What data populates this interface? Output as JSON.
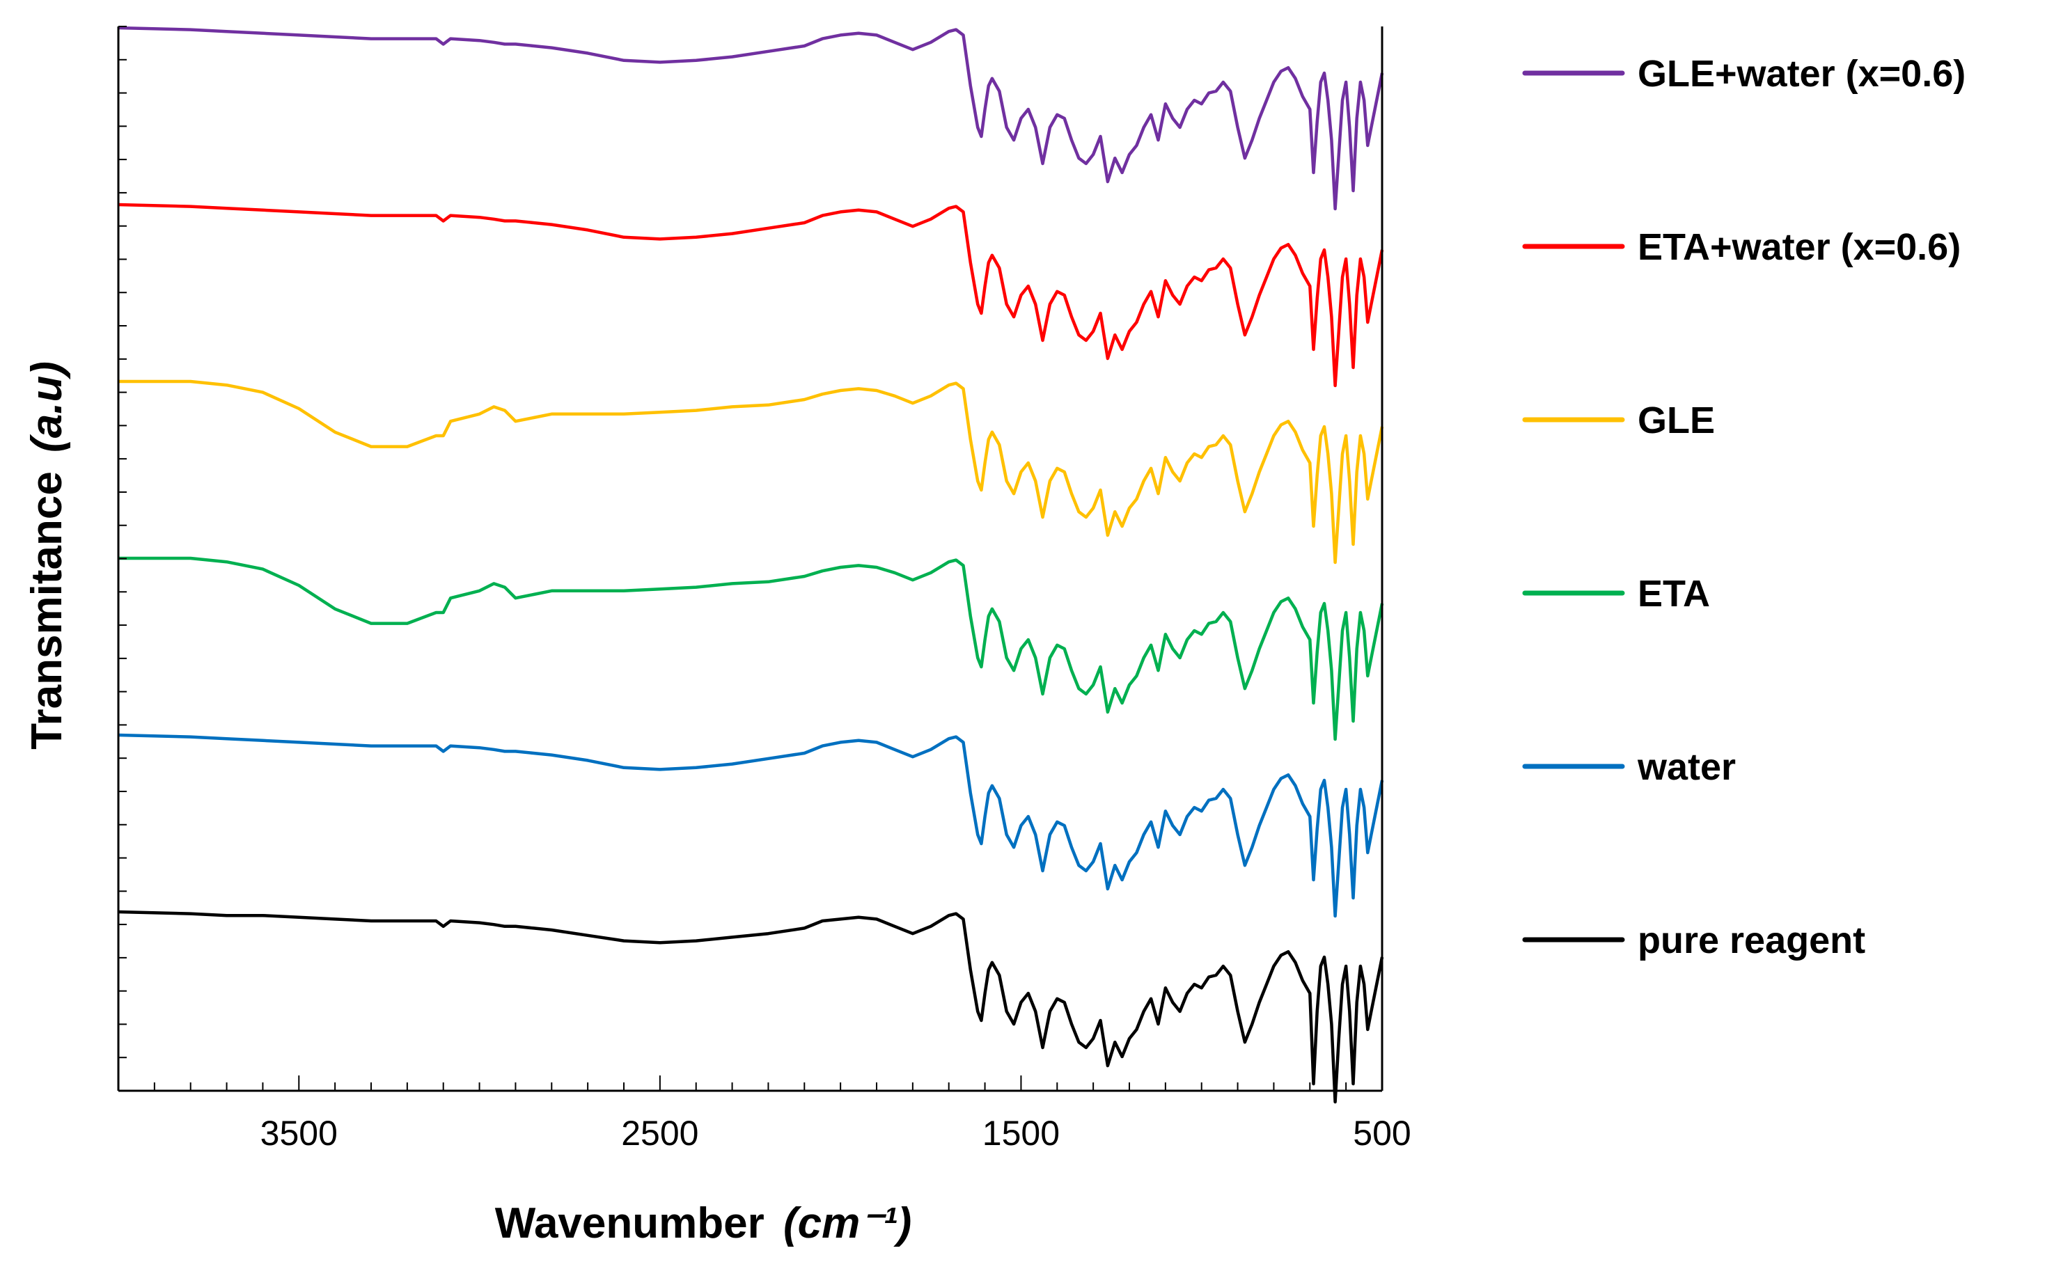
{
  "chart_data": {
    "type": "line",
    "title": "",
    "xlabel_main": "Wavenumber",
    "xlabel_unit": "(cm⁻¹)",
    "ylabel_main": "Transmitance",
    "ylabel_unit": "(a.u)",
    "xlim": [
      4000,
      500
    ],
    "x_reversed": true,
    "xticks": [
      3500,
      2500,
      1500,
      500
    ],
    "yticks_labeled": false,
    "grid": false,
    "legend_position": "right",
    "series": [
      {
        "name": "GLE+water (x=0.6)",
        "color": "#7030a0",
        "offset": 5,
        "variant": "water"
      },
      {
        "name": "ETA+water (x=0.6)",
        "color": "#ff0000",
        "offset": 4,
        "variant": "water"
      },
      {
        "name": "GLE",
        "color": "#ffc000",
        "offset": 3,
        "variant": "alcohol"
      },
      {
        "name": "ETA",
        "color": "#00b050",
        "offset": 2,
        "variant": "alcohol"
      },
      {
        "name": "water",
        "color": "#0070c0",
        "offset": 1,
        "variant": "water"
      },
      {
        "name": "pure reagent",
        "color": "#000000",
        "offset": 0,
        "variant": "base"
      }
    ],
    "spectrum_profile": {
      "x": [
        4000,
        3800,
        3700,
        3600,
        3500,
        3400,
        3300,
        3200,
        3120,
        3100,
        3080,
        3000,
        2960,
        2930,
        2900,
        2850,
        2800,
        2700,
        2600,
        2500,
        2400,
        2300,
        2200,
        2100,
        2050,
        2000,
        1950,
        1900,
        1850,
        1800,
        1750,
        1700,
        1680,
        1660,
        1640,
        1620,
        1610,
        1600,
        1590,
        1580,
        1560,
        1540,
        1520,
        1500,
        1480,
        1460,
        1440,
        1420,
        1400,
        1380,
        1360,
        1340,
        1320,
        1300,
        1280,
        1260,
        1240,
        1220,
        1200,
        1180,
        1160,
        1140,
        1120,
        1100,
        1080,
        1060,
        1040,
        1020,
        1000,
        980,
        960,
        940,
        920,
        900,
        880,
        860,
        840,
        820,
        800,
        780,
        760,
        740,
        720,
        700,
        690,
        680,
        670,
        660,
        650,
        640,
        630,
        620,
        610,
        600,
        590,
        580,
        570,
        560,
        550,
        540,
        530,
        520,
        510,
        500
      ],
      "water": [
        0.0,
        -0.01,
        -0.02,
        -0.03,
        -0.04,
        -0.05,
        -0.06,
        -0.06,
        -0.06,
        -0.09,
        -0.06,
        -0.07,
        -0.08,
        -0.09,
        -0.09,
        -0.1,
        -0.11,
        -0.14,
        -0.18,
        -0.19,
        -0.18,
        -0.16,
        -0.13,
        -0.1,
        -0.06,
        -0.04,
        -0.03,
        -0.04,
        -0.08,
        -0.12,
        -0.08,
        -0.02,
        -0.01,
        -0.04,
        -0.32,
        -0.55,
        -0.6,
        -0.45,
        -0.32,
        -0.28,
        -0.35,
        -0.55,
        -0.62,
        -0.5,
        -0.45,
        -0.55,
        -0.75,
        -0.55,
        -0.48,
        -0.5,
        -0.62,
        -0.72,
        -0.75,
        -0.7,
        -0.6,
        -0.85,
        -0.72,
        -0.8,
        -0.7,
        -0.65,
        -0.55,
        -0.48,
        -0.62,
        -0.42,
        -0.5,
        -0.55,
        -0.45,
        -0.4,
        -0.42,
        -0.36,
        -0.35,
        -0.3,
        -0.35,
        -0.55,
        -0.72,
        -0.62,
        -0.5,
        -0.4,
        -0.3,
        -0.24,
        -0.22,
        -0.28,
        -0.38,
        -0.45,
        -0.8,
        -0.52,
        -0.3,
        -0.25,
        -0.4,
        -0.62,
        -1.0,
        -0.7,
        -0.4,
        -0.3,
        -0.55,
        -0.9,
        -0.5,
        -0.3,
        -0.4,
        -0.65,
        -0.55,
        -0.45,
        -0.35,
        -0.25
      ],
      "alcohol": [
        0.0,
        0.0,
        -0.02,
        -0.06,
        -0.15,
        -0.28,
        -0.36,
        -0.36,
        -0.3,
        -0.3,
        -0.22,
        -0.18,
        -0.14,
        -0.16,
        -0.22,
        -0.2,
        -0.18,
        -0.18,
        -0.18,
        -0.17,
        -0.16,
        -0.14,
        -0.13,
        -0.1,
        -0.07,
        -0.05,
        -0.04,
        -0.05,
        -0.08,
        -0.12,
        -0.08,
        -0.02,
        -0.01,
        -0.04,
        -0.32,
        -0.55,
        -0.6,
        -0.45,
        -0.32,
        -0.28,
        -0.35,
        -0.55,
        -0.62,
        -0.5,
        -0.45,
        -0.55,
        -0.75,
        -0.55,
        -0.48,
        -0.5,
        -0.62,
        -0.72,
        -0.75,
        -0.7,
        -0.6,
        -0.85,
        -0.72,
        -0.8,
        -0.7,
        -0.65,
        -0.55,
        -0.48,
        -0.62,
        -0.42,
        -0.5,
        -0.55,
        -0.45,
        -0.4,
        -0.42,
        -0.36,
        -0.35,
        -0.3,
        -0.35,
        -0.55,
        -0.72,
        -0.62,
        -0.5,
        -0.4,
        -0.3,
        -0.24,
        -0.22,
        -0.28,
        -0.38,
        -0.45,
        -0.8,
        -0.52,
        -0.3,
        -0.25,
        -0.4,
        -0.62,
        -1.0,
        -0.7,
        -0.4,
        -0.3,
        -0.55,
        -0.9,
        -0.5,
        -0.3,
        -0.4,
        -0.65,
        -0.55,
        -0.45,
        -0.35,
        -0.25
      ],
      "base": [
        0.0,
        -0.01,
        -0.02,
        -0.02,
        -0.03,
        -0.04,
        -0.05,
        -0.05,
        -0.05,
        -0.08,
        -0.05,
        -0.06,
        -0.07,
        -0.08,
        -0.08,
        -0.09,
        -0.1,
        -0.13,
        -0.16,
        -0.17,
        -0.16,
        -0.14,
        -0.12,
        -0.09,
        -0.05,
        -0.04,
        -0.03,
        -0.04,
        -0.08,
        -0.12,
        -0.08,
        -0.02,
        -0.01,
        -0.04,
        -0.32,
        -0.55,
        -0.6,
        -0.45,
        -0.32,
        -0.28,
        -0.35,
        -0.55,
        -0.62,
        -0.5,
        -0.45,
        -0.55,
        -0.75,
        -0.55,
        -0.48,
        -0.5,
        -0.62,
        -0.72,
        -0.75,
        -0.7,
        -0.6,
        -0.85,
        -0.72,
        -0.8,
        -0.7,
        -0.65,
        -0.55,
        -0.48,
        -0.62,
        -0.42,
        -0.5,
        -0.55,
        -0.45,
        -0.4,
        -0.42,
        -0.36,
        -0.35,
        -0.3,
        -0.35,
        -0.55,
        -0.72,
        -0.62,
        -0.5,
        -0.4,
        -0.3,
        -0.24,
        -0.22,
        -0.28,
        -0.38,
        -0.45,
        -0.95,
        -0.55,
        -0.3,
        -0.25,
        -0.4,
        -0.62,
        -1.05,
        -0.7,
        -0.4,
        -0.3,
        -0.55,
        -0.95,
        -0.5,
        -0.3,
        -0.4,
        -0.65,
        -0.55,
        -0.45,
        -0.35,
        -0.25
      ]
    }
  }
}
